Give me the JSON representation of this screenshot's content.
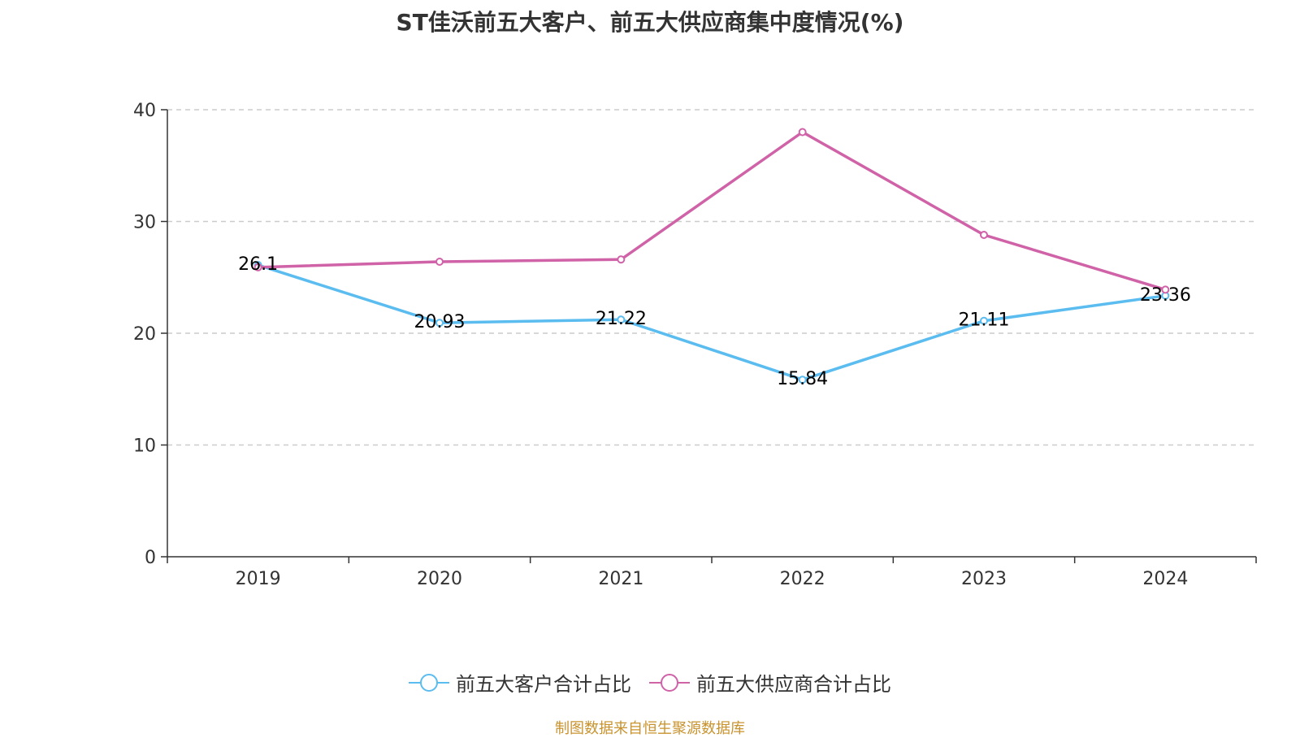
{
  "chart_data": {
    "type": "line",
    "title": "ST佳沃前五大客户、前五大供应商集中度情况(%)",
    "categories": [
      "2019",
      "2020",
      "2021",
      "2022",
      "2023",
      "2024"
    ],
    "ylim": [
      0,
      40
    ],
    "yticks": [
      0,
      10,
      20,
      30,
      40
    ],
    "grid": "horizontal dashed",
    "legend_position": "bottom",
    "series": [
      {
        "name": "前五大客户合计占比",
        "color": "#5bbcf0",
        "values": [
          26.1,
          20.93,
          21.22,
          15.84,
          21.11,
          23.36
        ],
        "labels": [
          "26.1",
          "20.93",
          "21.22",
          "15.84",
          "21.11",
          "23.36"
        ]
      },
      {
        "name": "前五大供应商合计占比",
        "color": "#d062a8",
        "values": [
          25.9,
          26.4,
          26.6,
          38.0,
          28.8,
          23.9
        ]
      }
    ]
  },
  "source": "制图数据来自恒生聚源数据库"
}
